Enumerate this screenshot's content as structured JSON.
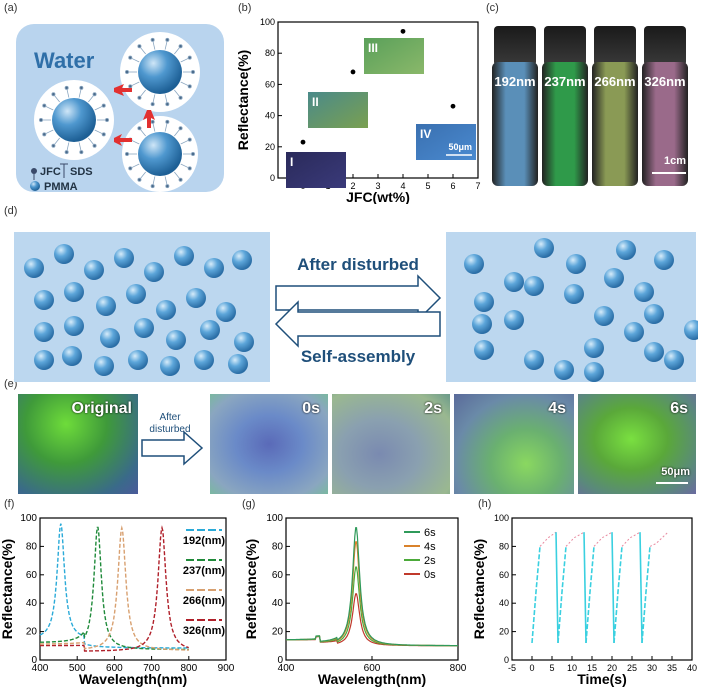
{
  "labels": {
    "a": "(a)",
    "b": "(b)",
    "c": "(c)",
    "d": "(d)",
    "e": "(e)",
    "f": "(f)",
    "g": "(g)",
    "h": "(h)"
  },
  "panel_a": {
    "title": "Water",
    "legend_jfc": "JFC",
    "legend_sds": "SDS",
    "legend_pmma": "PMMA"
  },
  "panel_c": {
    "vials": [
      "192nm",
      "237nm",
      "266nm",
      "326nm"
    ],
    "scale": "1cm",
    "colors": [
      "#5a8fb8",
      "#2f9a4a",
      "#8a9a55",
      "#9a6a8a"
    ]
  },
  "panel_d": {
    "after_disturbed": "After disturbed",
    "self_assembly": "Self-assembly"
  },
  "panel_e": {
    "original": "Original",
    "arrow_label": "After\ndisturbed",
    "times": [
      "0s",
      "2s",
      "4s",
      "6s"
    ],
    "scale": "50μm"
  },
  "chart_data": [
    {
      "panel": "b",
      "type": "scatter",
      "xlabel": "JFC(wt%)",
      "ylabel": "Reflectance(%)",
      "xlim": [
        -1,
        7
      ],
      "ylim": [
        0,
        100
      ],
      "xticks": [
        0,
        1,
        2,
        3,
        4,
        5,
        6,
        7
      ],
      "yticks": [
        0,
        20,
        40,
        60,
        80,
        100
      ],
      "x": [
        0,
        2,
        4,
        6
      ],
      "y": [
        23,
        68,
        94,
        46
      ],
      "insets": [
        "I",
        "II",
        "III",
        "IV"
      ],
      "inset_scale": "50μm"
    },
    {
      "panel": "f",
      "type": "line",
      "xlabel": "Wavelength(nm)",
      "ylabel": "Reflectance(%)",
      "xlim": [
        400,
        900
      ],
      "ylim": [
        0,
        100
      ],
      "xticks": [
        400,
        500,
        600,
        700,
        800,
        900
      ],
      "yticks": [
        0,
        20,
        40,
        60,
        80,
        100
      ],
      "series": [
        {
          "name": "192(nm)",
          "color": "#2aaad8",
          "peak": 456,
          "height": 96,
          "width": 12,
          "base": 14
        },
        {
          "name": "237(nm)",
          "color": "#1f8a3a",
          "peak": 555,
          "height": 94,
          "width": 12,
          "base": 12
        },
        {
          "name": "266(nm)",
          "color": "#d8a070",
          "peak": 620,
          "height": 93,
          "width": 13,
          "base": 11
        },
        {
          "name": "326(nm)",
          "color": "#b0202a",
          "peak": 728,
          "height": 93,
          "width": 13,
          "base": 10
        }
      ]
    },
    {
      "panel": "g",
      "type": "line",
      "xlabel": "Wavelength(nm)",
      "ylabel": "Reflectance(%)",
      "xlim": [
        400,
        800
      ],
      "ylim": [
        0,
        100
      ],
      "xticks": [
        400,
        600,
        800
      ],
      "yticks": [
        0,
        20,
        40,
        60,
        80,
        100
      ],
      "series": [
        {
          "name": "6s",
          "color": "#2f9a5a",
          "peak": 563,
          "height": 94
        },
        {
          "name": "4s",
          "color": "#d9822b",
          "peak": 563,
          "height": 84
        },
        {
          "name": "2s",
          "color": "#4caa3a",
          "peak": 563,
          "height": 66
        },
        {
          "name": "0s",
          "color": "#c0392b",
          "peak": 563,
          "height": 47
        }
      ]
    },
    {
      "panel": "h",
      "type": "line",
      "xlabel": "Time(s)",
      "ylabel": "Reflectance(%)",
      "xlim": [
        -5,
        40
      ],
      "ylim": [
        0,
        100
      ],
      "xticks": [
        -5,
        0,
        5,
        10,
        15,
        20,
        25,
        30,
        35,
        40
      ],
      "yticks": [
        0,
        20,
        40,
        60,
        80,
        100
      ],
      "cycles": [
        {
          "t": [
            0,
            1,
            2,
            4,
            6
          ],
          "y": [
            12,
            48,
            80,
            86,
            90
          ]
        },
        {
          "t": [
            6.5,
            7.5,
            8.5,
            10.5,
            13
          ],
          "y": [
            12,
            48,
            80,
            86,
            90
          ]
        },
        {
          "t": [
            13.5,
            14.5,
            15.5,
            17.5,
            20
          ],
          "y": [
            12,
            48,
            80,
            86,
            90
          ]
        },
        {
          "t": [
            20.5,
            21.5,
            22.5,
            24.5,
            27
          ],
          "y": [
            12,
            48,
            80,
            86,
            90
          ]
        },
        {
          "t": [
            27.5,
            28.5,
            29.5,
            31,
            34
          ],
          "y": [
            12,
            48,
            80,
            82,
            90
          ]
        }
      ]
    }
  ]
}
